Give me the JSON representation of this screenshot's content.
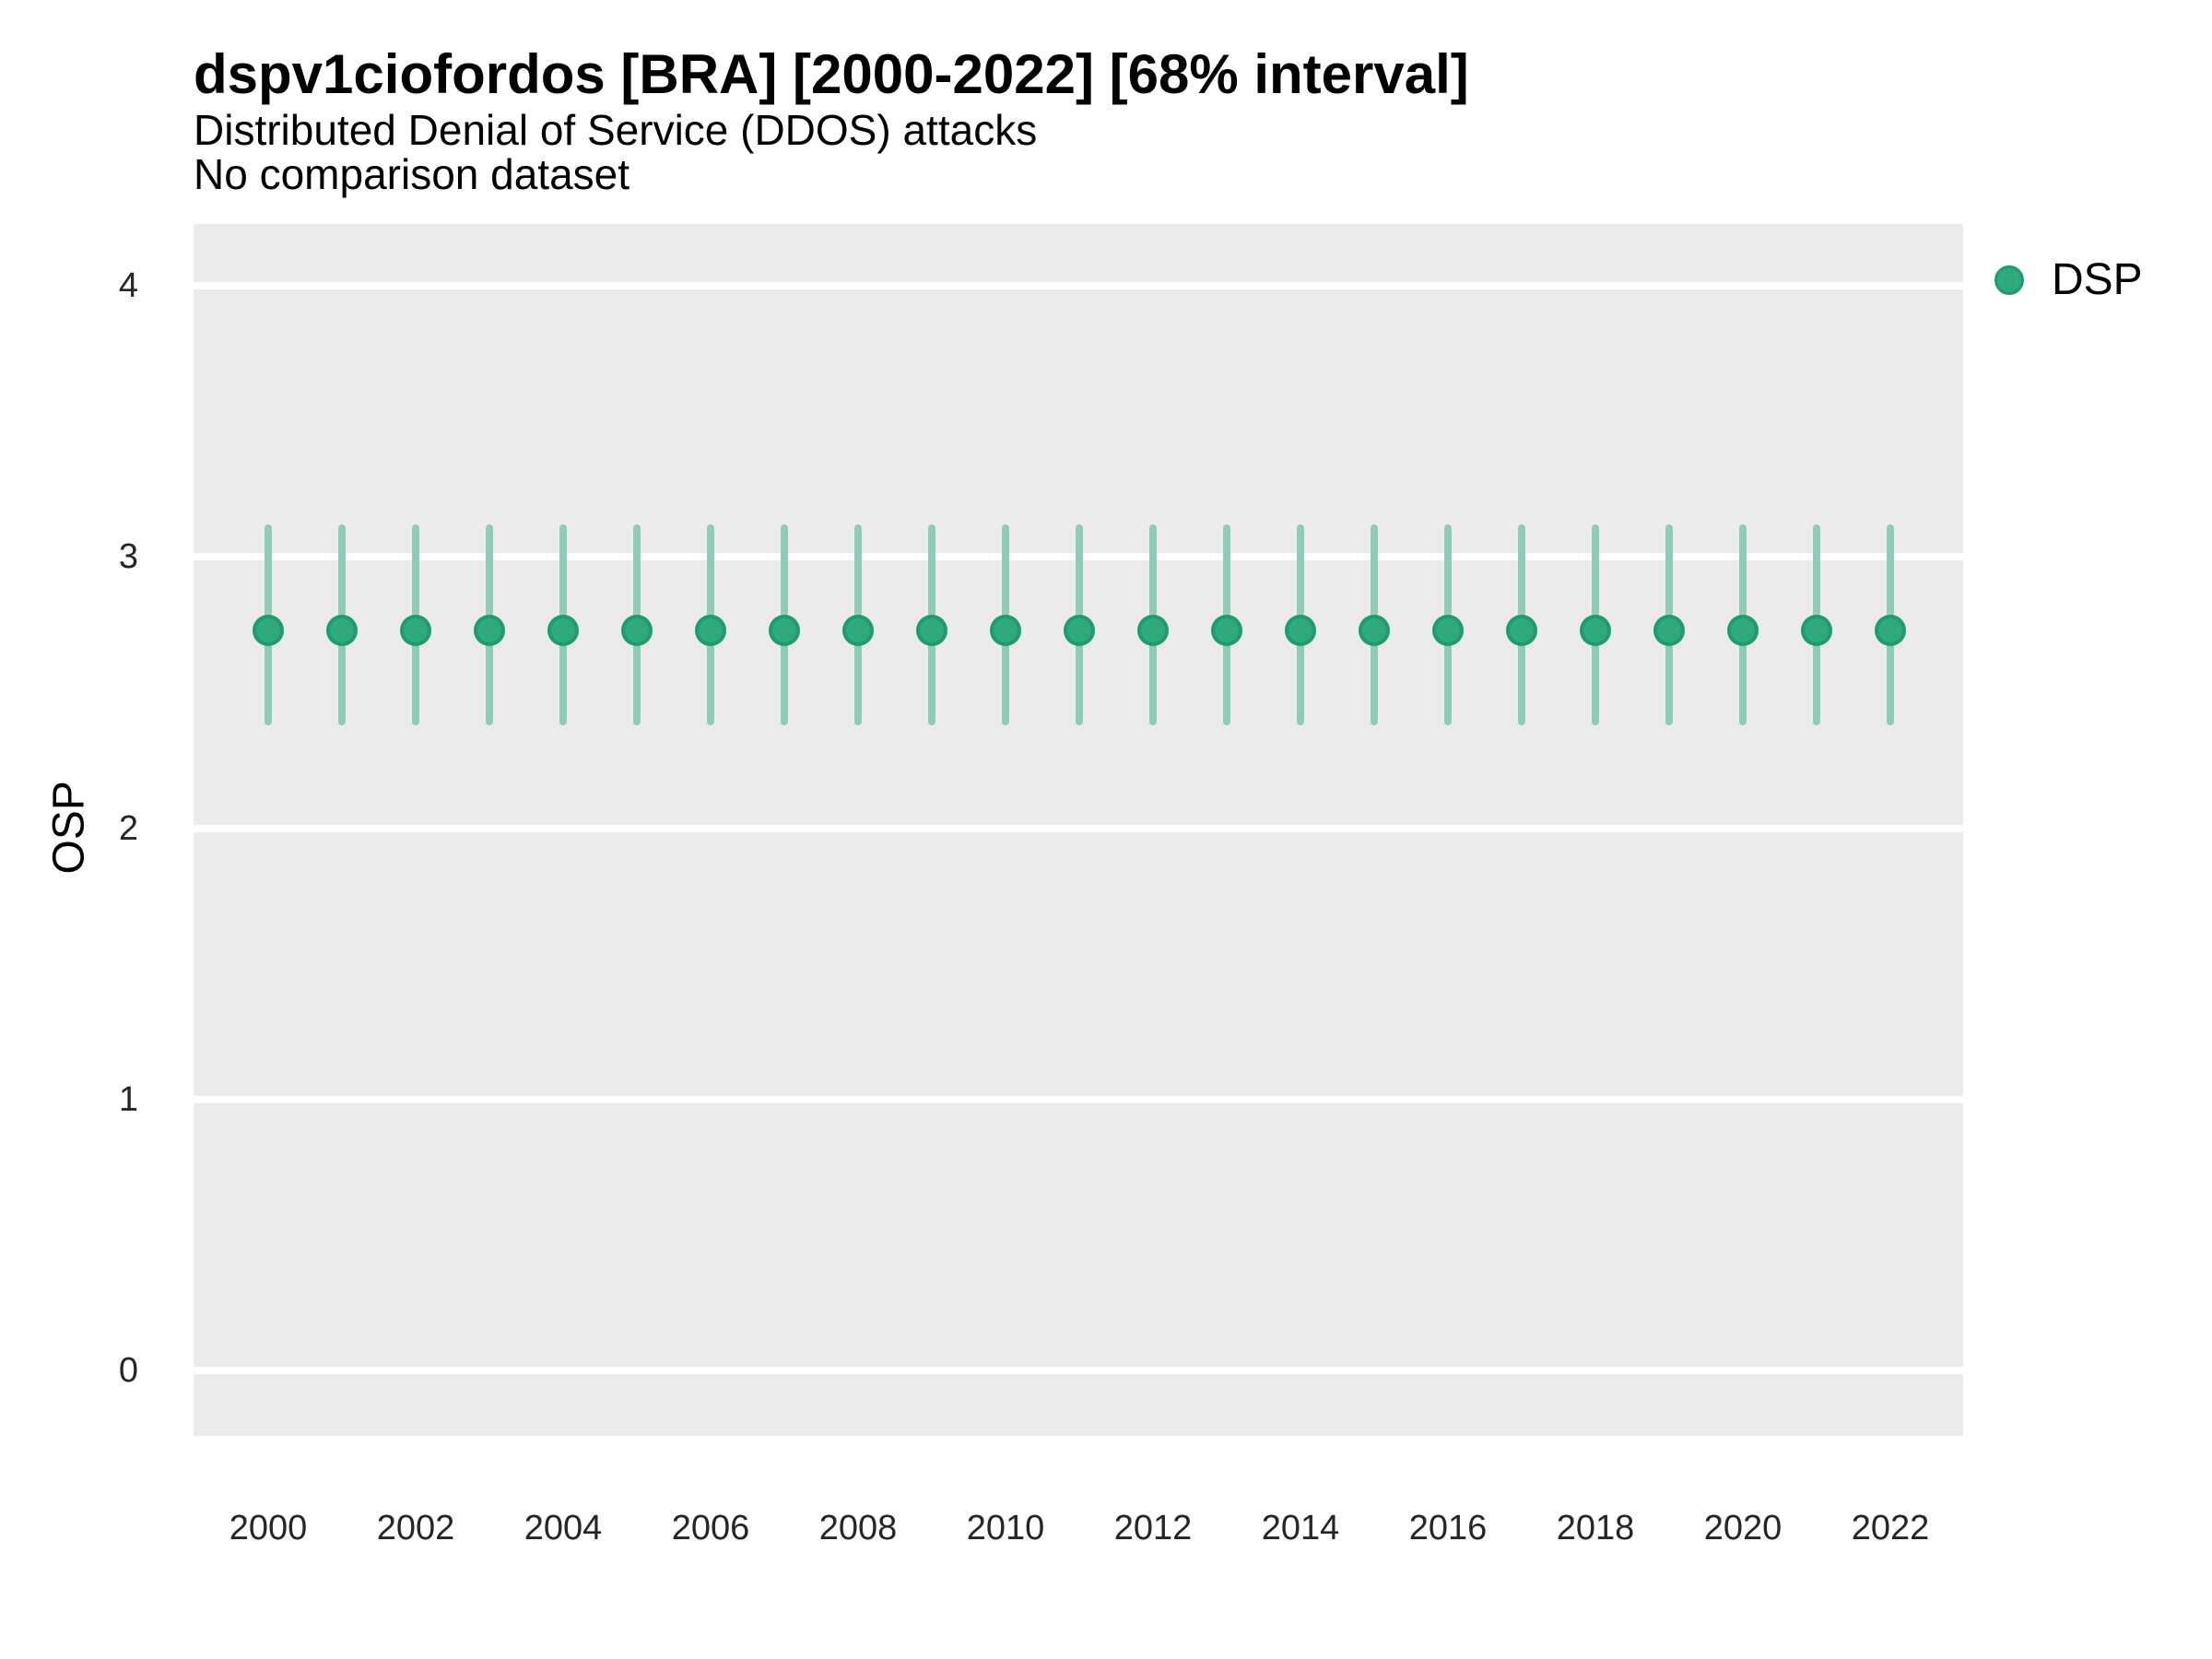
{
  "title": "dspv1ciofordos [BRA] [2000-2022] [68% interval]",
  "subtitle": "Distributed Denial of Service (DDOS) attacks",
  "comparison_note": "No comparison dataset",
  "legend": {
    "position": "right-top",
    "items": [
      {
        "label": "DSP",
        "marker": "circle"
      }
    ]
  },
  "colors": {
    "panel_background": "#EBEBEB",
    "gridline": "#FFFFFF",
    "interval_bar": "#8FCDB5",
    "point_fill": "#2FA97E",
    "point_stroke": "#1E9C6C",
    "text": "#000000",
    "tick_text": "#262626"
  },
  "chart_data": {
    "type": "scatter",
    "title": "dspv1ciofordos [BRA] [2000-2022] [68% interval]",
    "subtitle": "Distributed Denial of Service (DDOS) attacks",
    "interval": "68%",
    "xlabel": "",
    "ylabel": "OSP",
    "x": [
      2000,
      2001,
      2002,
      2003,
      2004,
      2005,
      2006,
      2007,
      2008,
      2009,
      2010,
      2011,
      2012,
      2013,
      2014,
      2015,
      2016,
      2017,
      2018,
      2019,
      2020,
      2021,
      2022
    ],
    "series": [
      {
        "name": "DSP",
        "values": [
          2.73,
          2.73,
          2.73,
          2.73,
          2.73,
          2.73,
          2.73,
          2.73,
          2.73,
          2.73,
          2.73,
          2.73,
          2.73,
          2.73,
          2.73,
          2.73,
          2.73,
          2.73,
          2.73,
          2.73,
          2.73,
          2.73,
          2.73
        ],
        "interval_low": [
          2.38,
          2.38,
          2.38,
          2.38,
          2.38,
          2.38,
          2.38,
          2.38,
          2.38,
          2.38,
          2.38,
          2.38,
          2.38,
          2.38,
          2.38,
          2.38,
          2.38,
          2.38,
          2.38,
          2.38,
          2.38,
          2.38,
          2.38
        ],
        "interval_high": [
          3.12,
          3.12,
          3.12,
          3.12,
          3.12,
          3.12,
          3.12,
          3.12,
          3.12,
          3.12,
          3.12,
          3.12,
          3.12,
          3.12,
          3.12,
          3.12,
          3.12,
          3.12,
          3.12,
          3.12,
          3.12,
          3.12,
          3.12
        ]
      }
    ],
    "yticks": [
      0,
      1,
      2,
      3,
      4
    ],
    "xticks": [
      2000,
      2002,
      2004,
      2006,
      2008,
      2010,
      2012,
      2014,
      2016,
      2018,
      2020,
      2022
    ],
    "ylim": [
      -0.24,
      4.23
    ],
    "xlim": [
      1999,
      2023
    ],
    "grid": "horizontal-major-only",
    "legend_position": "right-top"
  }
}
